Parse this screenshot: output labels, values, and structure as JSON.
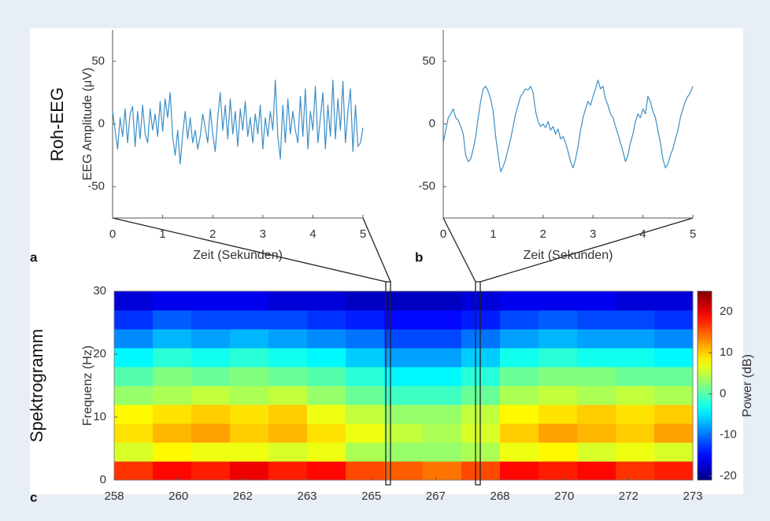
{
  "chart_data": [
    {
      "type": "line",
      "row_label": "Roh-EEG",
      "panel_label": "a",
      "xlabel": "Zeit (Sekunden)",
      "ylabel": "EEG Amplitude (μV)",
      "xlim": [
        0,
        5
      ],
      "xticks": [
        0,
        1,
        2,
        3,
        4,
        5
      ],
      "ylim": [
        -75,
        75
      ],
      "yticks": [
        -50,
        0,
        50
      ],
      "series": [
        {
          "color": "#3b8fc8",
          "x": [
            0,
            0.05,
            0.1,
            0.15,
            0.2,
            0.25,
            0.3,
            0.35,
            0.4,
            0.45,
            0.5,
            0.55,
            0.6,
            0.65,
            0.7,
            0.75,
            0.8,
            0.85,
            0.9,
            0.95,
            1,
            1.05,
            1.1,
            1.15,
            1.2,
            1.25,
            1.3,
            1.35,
            1.4,
            1.45,
            1.5,
            1.55,
            1.6,
            1.65,
            1.7,
            1.75,
            1.8,
            1.85,
            1.9,
            1.95,
            2,
            2.05,
            2.1,
            2.15,
            2.2,
            2.25,
            2.3,
            2.35,
            2.4,
            2.45,
            2.5,
            2.55,
            2.6,
            2.65,
            2.7,
            2.75,
            2.8,
            2.85,
            2.9,
            2.95,
            3,
            3.05,
            3.1,
            3.15,
            3.2,
            3.25,
            3.3,
            3.35,
            3.4,
            3.45,
            3.5,
            3.55,
            3.6,
            3.65,
            3.7,
            3.75,
            3.8,
            3.85,
            3.9,
            3.95,
            4,
            4.05,
            4.1,
            4.15,
            4.2,
            4.25,
            4.3,
            4.35,
            4.4,
            4.45,
            4.5,
            4.55,
            4.6,
            4.65,
            4.7,
            4.75,
            4.8,
            4.85,
            4.9,
            4.95,
            5
          ],
          "values": [
            10,
            -5,
            -20,
            5,
            -10,
            12,
            -15,
            8,
            14,
            -18,
            10,
            -12,
            15,
            -8,
            -15,
            12,
            -5,
            8,
            -10,
            18,
            -6,
            20,
            5,
            25,
            -10,
            -25,
            -5,
            -32,
            -8,
            10,
            -12,
            5,
            -15,
            -5,
            -20,
            -10,
            8,
            -3,
            -15,
            12,
            -8,
            -22,
            5,
            25,
            -5,
            15,
            -12,
            20,
            -8,
            10,
            -18,
            12,
            -5,
            18,
            -10,
            5,
            -15,
            8,
            -8,
            15,
            -20,
            5,
            -10,
            10,
            -5,
            35,
            -10,
            -28,
            15,
            -15,
            20,
            -8,
            10,
            -5,
            -15,
            22,
            -10,
            28,
            -20,
            10,
            -5,
            30,
            -15,
            5,
            25,
            -20,
            15,
            -10,
            35,
            -12,
            20,
            -5,
            34,
            -15,
            10,
            28,
            -22,
            15,
            -18,
            -15,
            -3
          ]
        }
      ]
    },
    {
      "type": "line",
      "panel_label": "b",
      "xlabel": "Zeit (Sekunden)",
      "xlim": [
        0,
        5
      ],
      "xticks": [
        0,
        1,
        2,
        3,
        4,
        5
      ],
      "ylim": [
        -75,
        75
      ],
      "yticks": [
        -50,
        0,
        50
      ],
      "series": [
        {
          "color": "#3b8fc8",
          "x": [
            0,
            0.05,
            0.1,
            0.15,
            0.2,
            0.25,
            0.3,
            0.35,
            0.4,
            0.45,
            0.5,
            0.55,
            0.6,
            0.65,
            0.7,
            0.75,
            0.8,
            0.85,
            0.9,
            0.95,
            1,
            1.05,
            1.1,
            1.15,
            1.2,
            1.25,
            1.3,
            1.35,
            1.4,
            1.45,
            1.5,
            1.55,
            1.6,
            1.65,
            1.7,
            1.75,
            1.8,
            1.85,
            1.9,
            1.95,
            2,
            2.05,
            2.1,
            2.15,
            2.2,
            2.25,
            2.3,
            2.35,
            2.4,
            2.45,
            2.5,
            2.55,
            2.6,
            2.65,
            2.7,
            2.75,
            2.8,
            2.85,
            2.9,
            2.95,
            3,
            3.05,
            3.1,
            3.15,
            3.2,
            3.25,
            3.3,
            3.35,
            3.4,
            3.45,
            3.5,
            3.55,
            3.6,
            3.65,
            3.7,
            3.75,
            3.8,
            3.85,
            3.9,
            3.95,
            4,
            4.05,
            4.1,
            4.15,
            4.2,
            4.25,
            4.3,
            4.35,
            4.4,
            4.45,
            4.5,
            4.55,
            4.6,
            4.65,
            4.7,
            4.75,
            4.8,
            4.85,
            4.9,
            4.95,
            5
          ],
          "values": [
            -15,
            -5,
            5,
            8,
            12,
            5,
            3,
            -2,
            -8,
            -25,
            -30,
            -28,
            -20,
            -10,
            5,
            18,
            28,
            30,
            26,
            20,
            10,
            -10,
            -25,
            -38,
            -34,
            -28,
            -20,
            -12,
            -2,
            8,
            15,
            22,
            25,
            28,
            27,
            30,
            25,
            10,
            2,
            -2,
            0,
            -3,
            2,
            -5,
            -2,
            -8,
            -4,
            -12,
            -10,
            -15,
            -22,
            -30,
            -35,
            -28,
            -18,
            -5,
            5,
            12,
            18,
            15,
            22,
            28,
            35,
            28,
            30,
            20,
            15,
            8,
            5,
            -2,
            -8,
            -15,
            -22,
            -30,
            -25,
            -15,
            -8,
            2,
            8,
            5,
            12,
            8,
            22,
            18,
            10,
            5,
            -5,
            -15,
            -28,
            -35,
            -32,
            -25,
            -20,
            -12,
            -5,
            5,
            12,
            18,
            22,
            25,
            30
          ]
        }
      ]
    },
    {
      "type": "heatmap",
      "row_label": "Spektrogramm",
      "panel_label": "c",
      "ylabel": "Frequenz (Hz)",
      "colorbar_label": "Power (dB)",
      "colormap": "jet",
      "xlim": [
        258,
        273
      ],
      "xticks": [
        {
          "value": 258,
          "label": "258"
        },
        {
          "value": 259.667,
          "label": "260"
        },
        {
          "value": 261.333,
          "label": "262"
        },
        {
          "value": 263,
          "label": "263"
        },
        {
          "value": 264.667,
          "label": "265"
        },
        {
          "value": 266.333,
          "label": "267"
        },
        {
          "value": 268,
          "label": "268"
        },
        {
          "value": 269.667,
          "label": "270"
        },
        {
          "value": 271.333,
          "label": "272"
        },
        {
          "value": 273,
          "label": "273"
        }
      ],
      "ylim": [
        0,
        30
      ],
      "yticks": [
        0,
        10,
        20,
        30
      ],
      "clim": [
        -21,
        25
      ],
      "colorbar_ticks": [
        -20,
        -10,
        0,
        10,
        20
      ],
      "x": [
        258.5,
        259.5,
        260.5,
        261.5,
        262.5,
        263.5,
        264.5,
        265.5,
        266.5,
        267.5,
        268.5,
        269.5,
        270.5,
        271.5,
        272.5
      ],
      "y": [
        1.5,
        4.5,
        7.5,
        10.5,
        13.5,
        16.5,
        19.5,
        22.5,
        25.5,
        28.5
      ],
      "values": [
        [
          17,
          19,
          18,
          20,
          18,
          19,
          16,
          15,
          14,
          16,
          19,
          18,
          19,
          17,
          18
        ],
        [
          6,
          8,
          7,
          7,
          6,
          7,
          4,
          3,
          3,
          4,
          7,
          8,
          6,
          7,
          6
        ],
        [
          9,
          11,
          12,
          10,
          11,
          9,
          7,
          5,
          4,
          6,
          10,
          12,
          11,
          10,
          12
        ],
        [
          8,
          9,
          10,
          9,
          10,
          7,
          5,
          3,
          3,
          5,
          8,
          9,
          10,
          9,
          10
        ],
        [
          3,
          4,
          5,
          4,
          5,
          3,
          1,
          -1,
          -1,
          1,
          4,
          5,
          4,
          5,
          4
        ],
        [
          0,
          2,
          1,
          2,
          1,
          0,
          -2,
          -4,
          -4,
          -2,
          1,
          2,
          2,
          1,
          1
        ],
        [
          -4,
          -2,
          -3,
          -2,
          -3,
          -4,
          -6,
          -8,
          -8,
          -6,
          -3,
          -2,
          -3,
          -3,
          -4
        ],
        [
          -9,
          -7,
          -8,
          -7,
          -8,
          -9,
          -10,
          -12,
          -12,
          -10,
          -8,
          -7,
          -8,
          -8,
          -9
        ],
        [
          -13,
          -11,
          -12,
          -12,
          -12,
          -13,
          -14,
          -15,
          -15,
          -14,
          -12,
          -11,
          -12,
          -12,
          -13
        ],
        [
          -17,
          -16,
          -16,
          -16,
          -17,
          -17,
          -18,
          -18,
          -18,
          -17,
          -16,
          -16,
          -16,
          -17,
          -17
        ]
      ]
    }
  ]
}
